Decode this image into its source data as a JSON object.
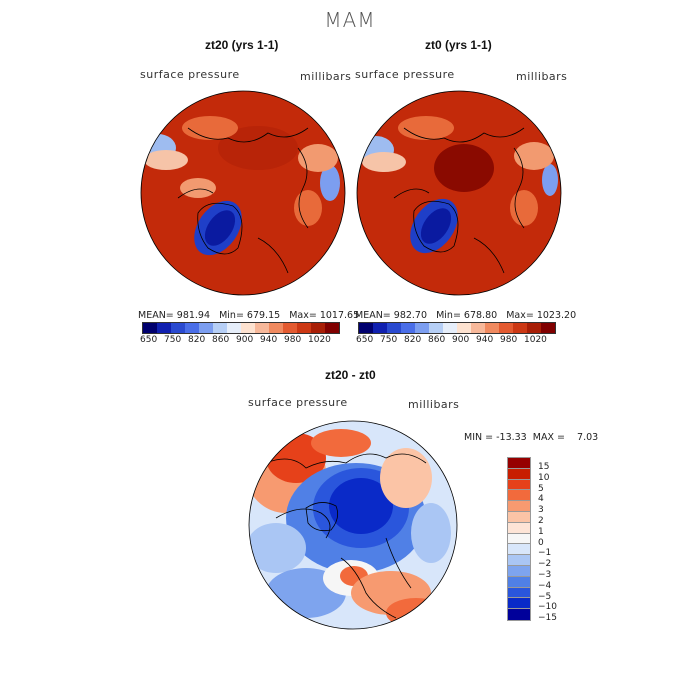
{
  "title": "MAM",
  "panels": [
    {
      "title": "zt20 (yrs 1-1)",
      "variable_label": "surface pressure",
      "units_label": "millibars",
      "stats": "MEAN= 981.94   Min= 679.15   Max= 1017.65"
    },
    {
      "title": "zt0 (yrs 1-1)",
      "variable_label": "surface pressure",
      "units_label": "millibars",
      "stats": "MEAN= 982.70   Min= 678.80   Max= 1023.20"
    }
  ],
  "shared_colorbar": {
    "labels": [
      "650",
      "750",
      "820",
      "860",
      "900",
      "940",
      "980",
      "1020"
    ],
    "colors": [
      "#00006e",
      "#1020b0",
      "#2a4ad0",
      "#4a6ee8",
      "#7c9ef0",
      "#b6cff6",
      "#e6eefa",
      "#fde2d0",
      "#f7b89a",
      "#f08a60",
      "#e35a30",
      "#cc3814",
      "#a81e06",
      "#800000"
    ]
  },
  "difference_panel": {
    "title": "zt20 - zt0",
    "variable_label": "surface pressure",
    "units_label": "millibars",
    "stats": "MIN = -13.33  MAX =    7.03",
    "colorbar": {
      "labels": [
        "15",
        "10",
        "5",
        "4",
        "3",
        "2",
        "1",
        "0",
        "−1",
        "−2",
        "−3",
        "−4",
        "−5",
        "−10",
        "−15"
      ],
      "colors": [
        "#960000",
        "#c81e00",
        "#e6411a",
        "#f26a3c",
        "#f79a70",
        "#fbc4a6",
        "#fde4d6",
        "#f6f6f6",
        "#d8e6fa",
        "#aac6f4",
        "#7ea4ee",
        "#5080e6",
        "#2a56dc",
        "#0a2ac8",
        "#00009a"
      ]
    }
  },
  "colors": {
    "land_high": "#c32a0a",
    "center_high": "#8a0a00",
    "greenland_low": "#2040d0",
    "difference_low": "#0a2ac8"
  }
}
